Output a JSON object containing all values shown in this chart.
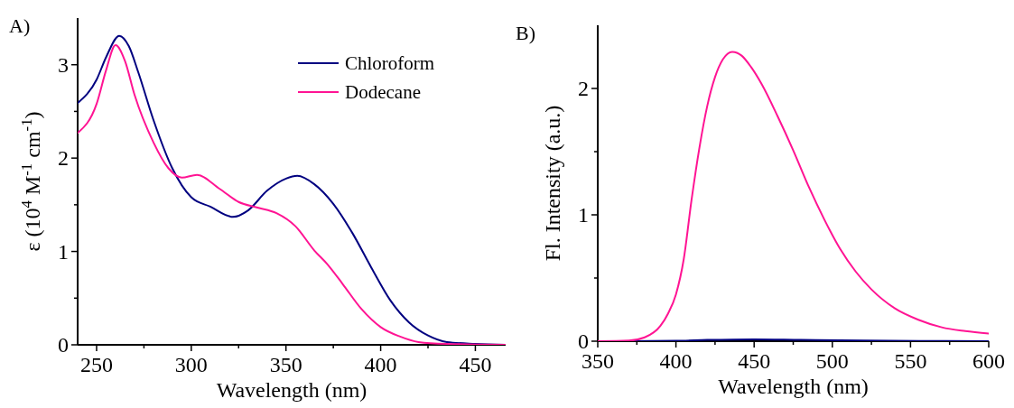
{
  "chart_data": [
    {
      "type": "line",
      "title": "A)",
      "xlabel": "Wavelength (nm)",
      "ylabel": "ε (10$^{4}$ M$^{-1}$ cm$^{-1}$)",
      "xlim": [
        240,
        466
      ],
      "ylim": [
        0,
        3.5
      ],
      "xticks": [
        250,
        {
          "value": 275,
          "label": null
        },
        300,
        {
          "value": 325,
          "label": null
        },
        350,
        {
          "value": 375,
          "label": null
        },
        400,
        {
          "value": 425,
          "label": null
        },
        450
      ],
      "yticks": [
        0,
        {
          "value": 0.5,
          "label": null
        },
        1,
        {
          "value": 1.5,
          "label": null
        },
        2,
        {
          "value": 2.5,
          "label": null
        },
        3
      ],
      "legend": "top right",
      "marker": "none",
      "line_style": "solid",
      "grid": false,
      "series": [
        {
          "name": "Chloroform",
          "color": "#000080",
          "x": [
            240,
            250,
            255,
            262,
            267,
            272,
            280,
            290,
            300,
            310,
            322,
            330,
            340,
            350,
            356,
            365,
            375,
            385,
            395,
            405,
            415,
            425,
            435,
            450,
            466
          ],
          "values": [
            2.59,
            2.84,
            3.08,
            3.31,
            3.2,
            2.92,
            2.41,
            1.89,
            1.58,
            1.48,
            1.37,
            1.44,
            1.65,
            1.78,
            1.81,
            1.72,
            1.51,
            1.2,
            0.83,
            0.48,
            0.24,
            0.1,
            0.03,
            0.01,
            0
          ]
        },
        {
          "name": "Dodecane",
          "color": "#ff1493",
          "x": [
            240,
            250,
            255,
            260,
            265,
            270,
            280,
            288,
            295,
            303,
            315,
            325,
            335,
            345,
            355,
            365,
            372,
            380,
            390,
            400,
            410,
            420,
            435,
            466
          ],
          "values": [
            2.27,
            2.58,
            2.94,
            3.21,
            3.04,
            2.68,
            2.17,
            1.89,
            1.79,
            1.82,
            1.67,
            1.53,
            1.47,
            1.41,
            1.27,
            1.01,
            0.86,
            0.65,
            0.38,
            0.19,
            0.09,
            0.03,
            0.01,
            0
          ]
        }
      ]
    },
    {
      "type": "line",
      "title": "B)",
      "xlabel": "Wavelength (nm)",
      "ylabel": "Fl. Intensity (a.u.)",
      "xlim": [
        350,
        600
      ],
      "ylim": [
        0,
        2.5
      ],
      "xticks": [
        350,
        {
          "value": 375,
          "label": null
        },
        400,
        {
          "value": 425,
          "label": null
        },
        450,
        {
          "value": 475,
          "label": null
        },
        500,
        {
          "value": 525,
          "label": null
        },
        550,
        {
          "value": 575,
          "label": null
        },
        600
      ],
      "yticks": [
        0,
        {
          "value": 0.5,
          "label": null
        },
        1,
        {
          "value": 1.5,
          "label": null
        },
        2
      ],
      "legend": false,
      "marker": "none",
      "line_style": "solid",
      "grid": false,
      "series": [
        {
          "color": "#000080",
          "x": [
            350,
            400,
            420,
            450,
            480,
            520,
            600
          ],
          "values": [
            0,
            0.003,
            0.01,
            0.015,
            0.01,
            0.005,
            0
          ]
        },
        {
          "color": "#ff1493",
          "x": [
            350,
            370,
            380,
            390,
            395,
            400,
            405,
            410,
            415,
            420,
            425,
            430,
            436,
            442,
            448,
            455,
            465,
            475,
            485,
            495,
            505,
            515,
            525,
            540,
            555,
            570,
            585,
            600
          ],
          "values": [
            0,
            0.005,
            0.03,
            0.12,
            0.22,
            0.37,
            0.65,
            1.12,
            1.53,
            1.86,
            2.09,
            2.23,
            2.29,
            2.26,
            2.17,
            2.03,
            1.78,
            1.51,
            1.22,
            0.96,
            0.73,
            0.55,
            0.41,
            0.26,
            0.17,
            0.11,
            0.08,
            0.06
          ]
        }
      ]
    }
  ]
}
